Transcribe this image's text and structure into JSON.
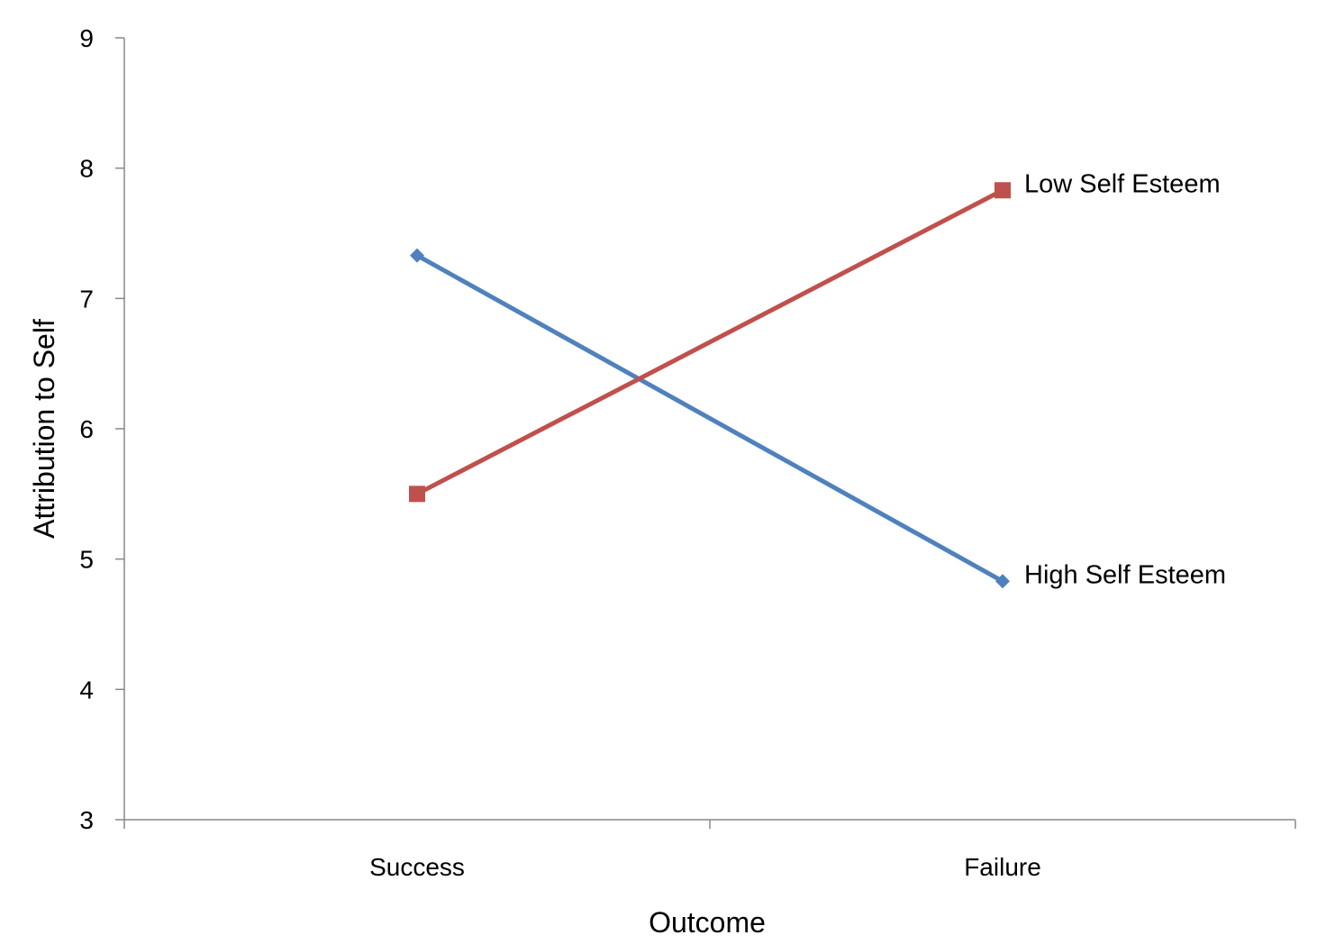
{
  "chart_data": {
    "type": "line",
    "title": "",
    "xlabel": "Outcome",
    "ylabel": "Attribution to Self",
    "categories": [
      "Success",
      "Failure"
    ],
    "ylim": [
      3,
      9
    ],
    "yticks": [
      "3",
      "4",
      "5",
      "6",
      "7",
      "8",
      "9"
    ],
    "grid": false,
    "legend": "none",
    "series": [
      {
        "name": "High Self Esteem",
        "values": [
          7.33,
          4.83
        ],
        "color": "#4F81BD",
        "marker": "diamond"
      },
      {
        "name": "Low Self Esteem",
        "values": [
          5.5,
          7.83
        ],
        "color": "#C0504D",
        "marker": "square"
      }
    ]
  }
}
